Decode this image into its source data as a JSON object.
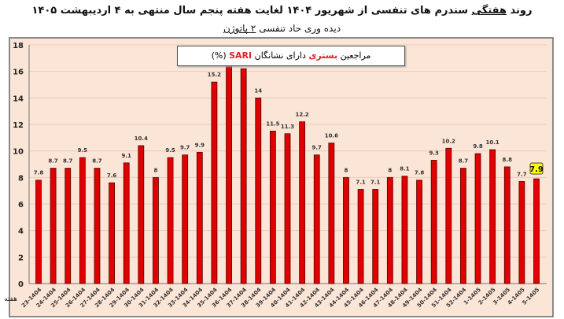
{
  "title": {
    "pre": "روند ",
    "under": "هفتگی",
    "post": " سندرم های تنفسی از شهریور ۱۴۰۴ لغایت هفته پنجم سال منتهی به ۴ اردیبهشت ۱۴۰۵"
  },
  "subtitle": {
    "pre": "دیده وری حاد تنفسی ",
    "under": "۲ پاتوژن"
  },
  "legend": {
    "pre": "مراجعین ",
    "red1": "بستری",
    "mid": " دارای نشانگان ",
    "red2": "SARI",
    "post": " (%)"
  },
  "colors": {
    "bar": "#e00000",
    "bar_stroke": "#5a0000",
    "bg": "#fbe5d6",
    "highlight": "#ffff00"
  },
  "chart_data": {
    "type": "bar",
    "title": "روند هفتگی سندرم های تنفسی",
    "xlabel": "هفته",
    "ylabel": "",
    "ylim": [
      0,
      18
    ],
    "yticks": [
      0,
      2,
      4,
      6,
      8,
      10,
      12,
      14,
      16,
      18
    ],
    "grid": true,
    "categories": [
      "23-1404",
      "24-1404",
      "25-1404",
      "26-1404",
      "27-1404",
      "28-1404",
      "29-1404",
      "30-1404",
      "31-1404",
      "32-1404",
      "33-1404",
      "34-1404",
      "35-1404",
      "36-1404",
      "37-1404",
      "38-1404",
      "39-1404",
      "40-1404",
      "41-1404",
      "42-1404",
      "43-1404",
      "44-1404",
      "45-1404",
      "46-1404",
      "47-1404",
      "48-1404",
      "49-1404",
      "50-1404",
      "51-1404",
      "52-1404",
      "1-1405",
      "2-1405",
      "3-1405",
      "4-1405",
      "5-1405"
    ],
    "values": [
      7.8,
      8.7,
      8.7,
      9.5,
      8.7,
      7.6,
      9.1,
      10.4,
      8,
      9.5,
      9.7,
      9.9,
      15.2,
      17,
      16.2,
      14,
      11.5,
      11.3,
      12.2,
      9.7,
      10.6,
      8,
      7.1,
      7.1,
      8,
      8.1,
      7.8,
      9.3,
      10.2,
      8.7,
      9.8,
      10.1,
      8.8,
      7.7,
      7.9
    ],
    "hidden_label_index": 13,
    "highlight_index": 34
  }
}
